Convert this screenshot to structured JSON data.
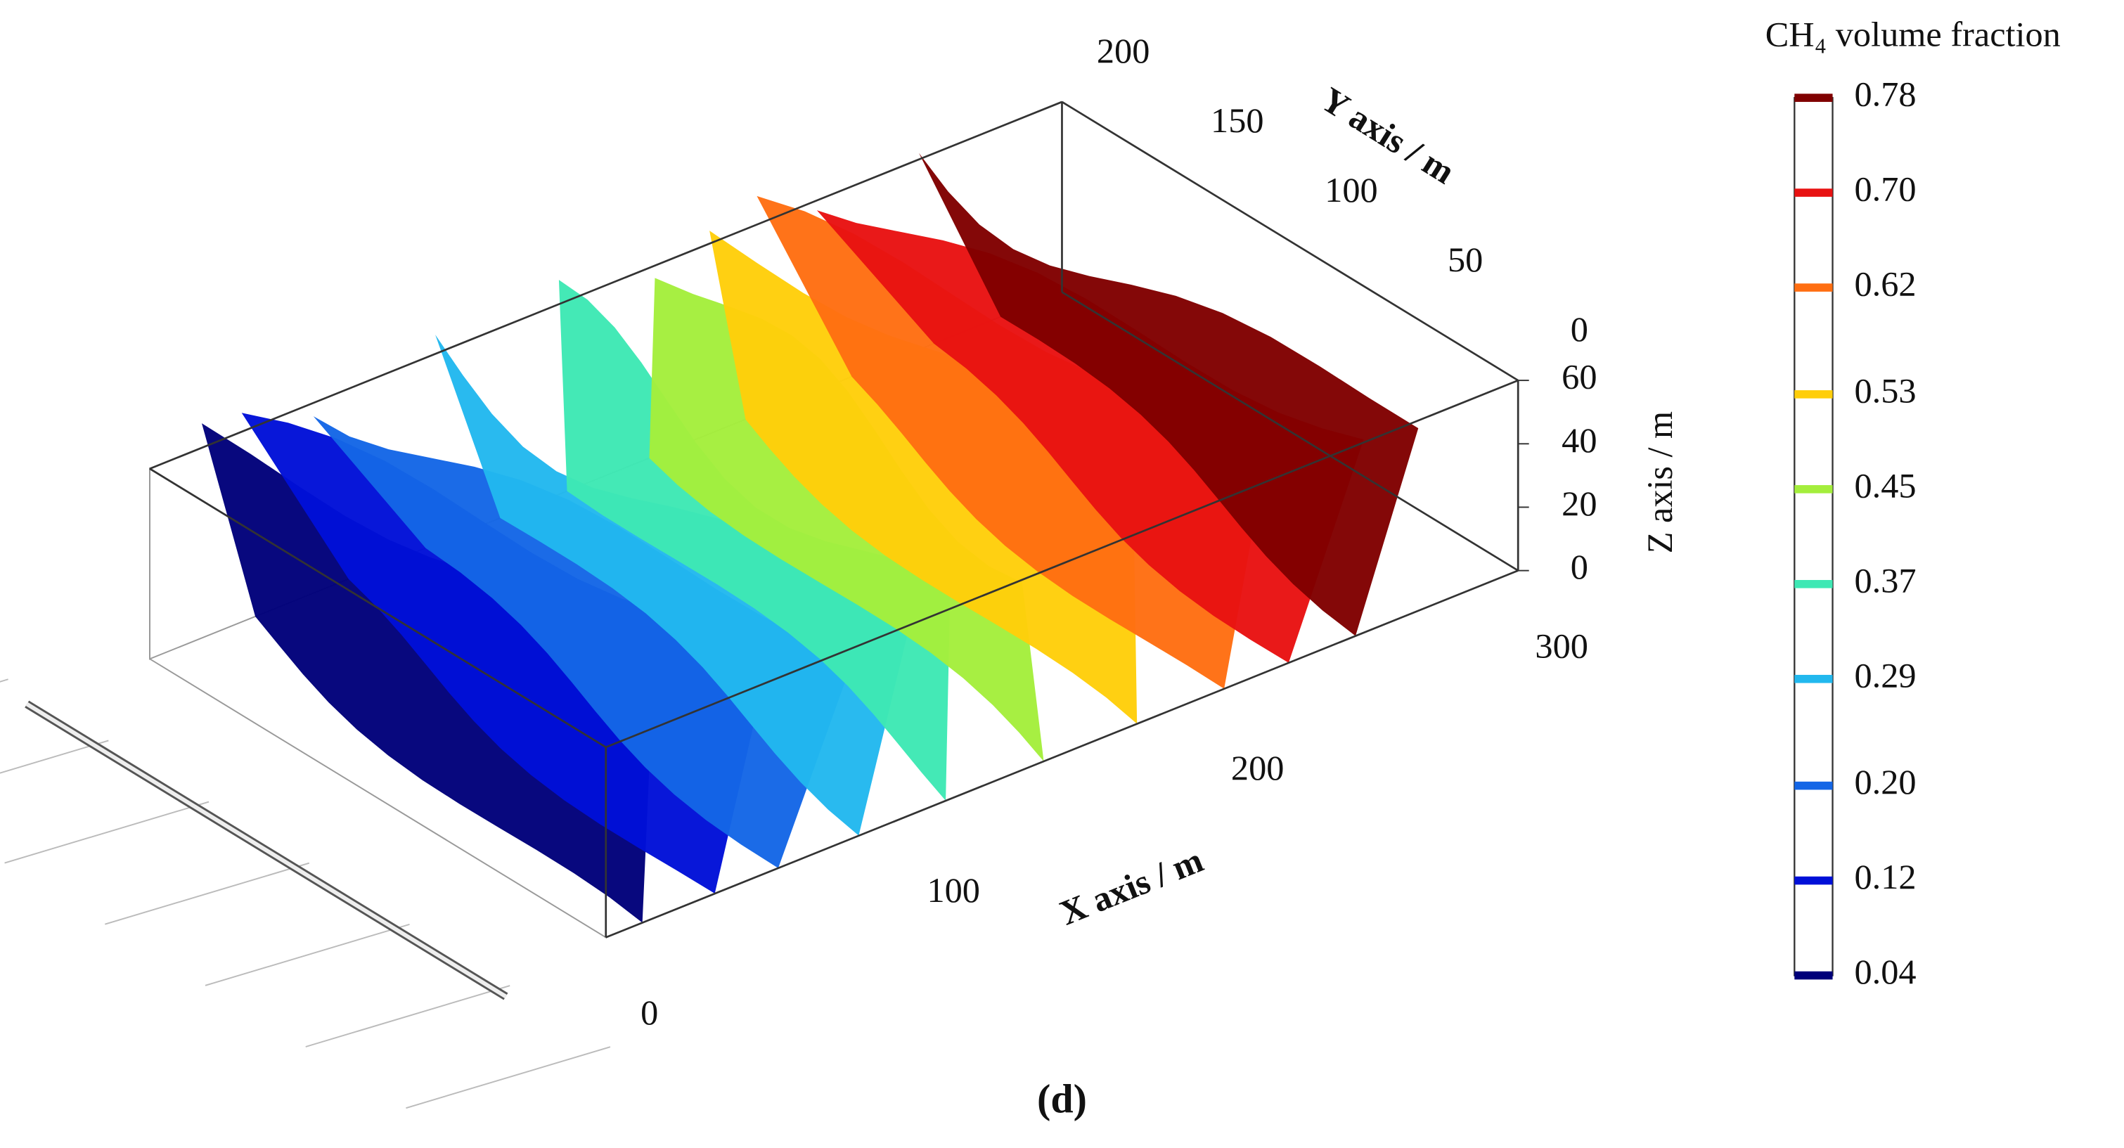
{
  "chart_data": {
    "type": "isosurface",
    "caption": "(d)",
    "xlabel": "X axis / m",
    "ylabel": "Y axis / m",
    "zlabel": "Z axis / m",
    "xlim": [
      0,
      300
    ],
    "ylim": [
      0,
      200
    ],
    "zlim": [
      0,
      60
    ],
    "xticks": [
      0,
      100,
      200,
      300
    ],
    "yticks": [
      0,
      50,
      100,
      150,
      200
    ],
    "zticks": [
      0,
      20,
      40,
      60
    ],
    "colorbar": {
      "title": "CH₄ volume fraction",
      "clim": [
        0.04,
        0.78
      ],
      "ticks": [
        0.04,
        0.12,
        {
          "value": 0.2,
          "label": "0.20"
        },
        0.29,
        0.37,
        0.45,
        0.53,
        0.62,
        {
          "value": 0.7,
          "label": "0.70"
        },
        0.78
      ],
      "colors": [
        "#00007a",
        "#0010d8",
        "#1466e6",
        "#22b8ee",
        "#3ee8b4",
        "#a4ee3c",
        "#ffce0a",
        "#ff6e12",
        "#e81212",
        "#800000"
      ]
    }
  }
}
